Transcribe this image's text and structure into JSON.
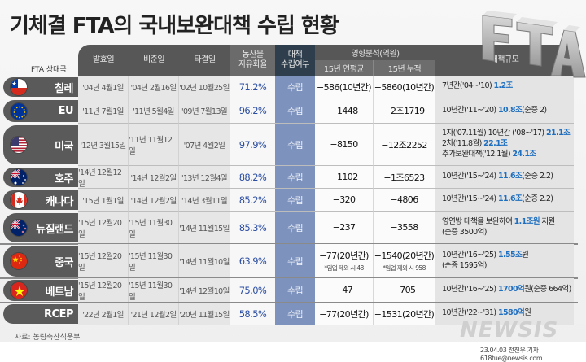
{
  "title": "기체결 FTA의 국내보완대책 수립 현황",
  "logo_text": "FTA",
  "header": {
    "partner": "FTA 상대국",
    "effective": "발효일",
    "ratified": "비준일",
    "concluded": "타결일",
    "liberalization_line1": "농산물",
    "liberalization_line2": "자유화율",
    "established_line1": "대책",
    "established_line2": "수립여부",
    "impact": "영향분석(억원)",
    "impact_annual": "15년 연평균",
    "impact_cumulative": "15년 누적",
    "scale": "대책규모"
  },
  "rows": [
    {
      "country": "칠레",
      "flag": "chile-flag",
      "effective": "'04년 4월1일",
      "ratified": "'04년 2월16일",
      "concluded": "'02년 10월25일",
      "rate": "71.2%",
      "status": "수립",
      "annual": "−586(10년간)",
      "annual_note": "",
      "cumulative": "−5860(10년간)",
      "cumulative_note": "",
      "plan": [
        {
          "t": "7년간('04~'10) ",
          "h": false
        },
        {
          "t": "1.2조",
          "h": true
        }
      ]
    },
    {
      "country": "EU",
      "flag": "eu-flag",
      "effective": "'11년 7월1일",
      "ratified": "'11년 5월4일",
      "concluded": "'09년 7월13일",
      "rate": "96.2%",
      "status": "수립",
      "annual": "−1448",
      "annual_note": "",
      "cumulative": "−2조1719",
      "cumulative_note": "",
      "plan": [
        {
          "t": "10년간('11~'20) ",
          "h": false
        },
        {
          "t": "10.8조",
          "h": true
        },
        {
          "t": "(순증 2)",
          "h": false
        }
      ]
    },
    {
      "country": "미국",
      "flag": "usa-flag",
      "effective": "'12년 3월15일",
      "ratified": "'11년 11월12일",
      "concluded": "'07년 4월2일",
      "rate": "97.9%",
      "status": "수립",
      "annual": "−8150",
      "annual_note": "",
      "cumulative": "−12조2252",
      "cumulative_note": "",
      "plan": [
        {
          "t": "1차('07.11월) 10년간 ('08~'17) ",
          "h": false
        },
        {
          "t": "21.1조",
          "h": true
        },
        {
          "t": "\n2차('11.8월) ",
          "h": false
        },
        {
          "t": "22.1조",
          "h": true
        },
        {
          "t": "\n추가보완대책('12.1월) ",
          "h": false
        },
        {
          "t": "24.1조",
          "h": true
        }
      ]
    },
    {
      "country": "호주",
      "flag": "australia-flag",
      "effective": "'14년 12월12일",
      "ratified": "'14년 12월2일",
      "concluded": "'13년 12월4일",
      "rate": "88.2%",
      "status": "수립",
      "annual": "−1102",
      "annual_note": "",
      "cumulative": "−1조6523",
      "cumulative_note": "",
      "plan": [
        {
          "t": "10년간('15~'24) ",
          "h": false
        },
        {
          "t": "11.6조",
          "h": true
        },
        {
          "t": "(순증 2.2)",
          "h": false
        }
      ]
    },
    {
      "country": "캐나다",
      "flag": "canada-flag",
      "effective": "'15년 1월1일",
      "ratified": "'14년 12월2일",
      "concluded": "'14년 3월11일",
      "rate": "85.2%",
      "status": "수립",
      "annual": "−320",
      "annual_note": "",
      "cumulative": "−4806",
      "cumulative_note": "",
      "plan": [
        {
          "t": "10년간('15~'24) ",
          "h": false
        },
        {
          "t": "11.6조",
          "h": true
        },
        {
          "t": "(순증 2.2)",
          "h": false
        }
      ]
    },
    {
      "country": "뉴질랜드",
      "flag": "new-zealand-flag",
      "effective": "'15년 12월20일",
      "ratified": "'15년 11월30일",
      "concluded": "'14년 11월15일",
      "rate": "85.3%",
      "status": "수립",
      "annual": "−237",
      "annual_note": "",
      "cumulative": "−3558",
      "cumulative_note": "",
      "plan": [
        {
          "t": "영연방 대책을 보완하여 ",
          "h": false
        },
        {
          "t": "1.1조원",
          "h": true
        },
        {
          "t": " 지원\n(순증 3500억)",
          "h": false
        }
      ]
    },
    {
      "country": "중국",
      "flag": "china-flag",
      "effective": "'15년 12월20일",
      "ratified": "'15년 11월30일",
      "concluded": "'14년 11월10일",
      "rate": "63.9%",
      "status": "수립",
      "annual": "−77(20년간)",
      "annual_note": "*임업 제외 시 48",
      "cumulative": "−1540(20년간)",
      "cumulative_note": "*임업 제외 시 958",
      "plan": [
        {
          "t": "10년간('16~'25) ",
          "h": false
        },
        {
          "t": "1.55조",
          "h": true
        },
        {
          "t": "원\n(순증 1595억)",
          "h": false
        }
      ]
    },
    {
      "country": "베트남",
      "flag": "vietnam-flag",
      "effective": "'15년 12월20일",
      "ratified": "'15년 11월30일",
      "concluded": "'14년 12월10일",
      "rate": "75.0%",
      "status": "수립",
      "annual": "−47",
      "annual_note": "",
      "cumulative": "−705",
      "cumulative_note": "",
      "plan": [
        {
          "t": "10년간('16~'25) ",
          "h": false
        },
        {
          "t": "1700억",
          "h": true
        },
        {
          "t": "원(순증 664억)",
          "h": false
        }
      ]
    },
    {
      "country": "RCEP",
      "flag": "",
      "effective": "'22년 2월1일",
      "ratified": "'21년 12월2일",
      "concluded": "'20년 11월15일",
      "rate": "58.5%",
      "status": "수립",
      "annual": "−77(20년간)",
      "annual_note": "",
      "cumulative": "−1531(20년간)",
      "cumulative_note": "",
      "plan": [
        {
          "t": "10년간('22~'31) ",
          "h": false
        },
        {
          "t": "1580억",
          "h": true
        },
        {
          "t": "원",
          "h": false
        }
      ]
    }
  ],
  "footer": {
    "source": "자료: 농림축산식품부",
    "brand": "NEWSIS",
    "byline": "23.04.03 전진우 기자 618tue@newsis.com"
  },
  "colors": {
    "header_dark": "#575757",
    "header_blue": "#2f3e4c",
    "status_blue": "#7d92bd",
    "percent_text": "#2d4fa3",
    "highlight_text": "#1f6fc0"
  }
}
